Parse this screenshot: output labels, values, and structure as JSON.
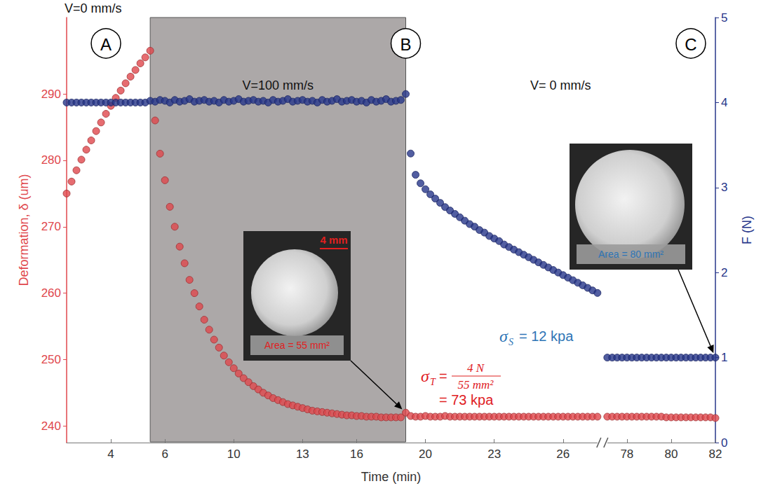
{
  "chart_data": {
    "type": "scatter",
    "x_label": "Time (min)",
    "categories": [
      null,
      null,
      null,
      null,
      null,
      null,
      null,
      null,
      null,
      "4",
      null,
      null,
      null,
      null,
      null,
      null,
      null,
      null,
      null,
      null,
      "6",
      null,
      null,
      null,
      null,
      null,
      null,
      null,
      null,
      null,
      null,
      null,
      null,
      null,
      "10",
      null,
      null,
      null,
      null,
      null,
      null,
      null,
      null,
      null,
      null,
      null,
      null,
      null,
      "13",
      null,
      null,
      null,
      null,
      null,
      null,
      null,
      null,
      null,
      null,
      "16",
      null,
      null,
      null,
      null,
      null,
      null,
      null,
      null,
      null,
      null,
      null,
      null,
      null,
      "20",
      null,
      null,
      null,
      null,
      null,
      null,
      null,
      null,
      null,
      null,
      null,
      null,
      null,
      "23",
      null,
      null,
      null,
      null,
      null,
      null,
      null,
      null,
      null,
      null,
      null,
      null,
      null,
      "26",
      null,
      null,
      null,
      null,
      null,
      null,
      null,
      null,
      null,
      null,
      null,
      null,
      "78",
      null,
      null,
      null,
      null,
      null,
      null,
      null,
      null,
      "80",
      null,
      null,
      null,
      null,
      null,
      null,
      null,
      null,
      "82"
    ],
    "series": [
      {
        "name": "Deformation, δ (um)",
        "color": "#e0474c",
        "axis": "y",
        "values": [
          275,
          276.8,
          278.5,
          280.1,
          281.6,
          283,
          284.4,
          285.7,
          287,
          288.2,
          289.4,
          290.5,
          291.6,
          292.6,
          293.6,
          294.6,
          295.5,
          296.5,
          286,
          281,
          277,
          273,
          270,
          267,
          264.5,
          262,
          260,
          258,
          256,
          254.5,
          253,
          251.8,
          250.6,
          249.6,
          248.7,
          247.9,
          247.2,
          246.6,
          246,
          245.5,
          245,
          244.6,
          244.2,
          243.9,
          243.6,
          243.3,
          243.1,
          242.9,
          242.7,
          242.5,
          242.3,
          242.2,
          242.1,
          242,
          241.9,
          241.8,
          241.7,
          241.6,
          241.6,
          241.5,
          241.5,
          241.4,
          241.4,
          241.4,
          241.3,
          241.3,
          241.3,
          241.3,
          241.3,
          242,
          241.5,
          241.4,
          241.4,
          241.5,
          241.4,
          241.4,
          241.4,
          241.5,
          241.4,
          241.4,
          241.4,
          241.4,
          241.4,
          241.4,
          241.4,
          241.4,
          241.4,
          241.4,
          241.4,
          241.4,
          241.4,
          241.4,
          241.4,
          241.4,
          241.4,
          241.4,
          241.4,
          241.4,
          241.4,
          241.4,
          241.4,
          241.4,
          241.4,
          241.4,
          241.4,
          241.4,
          241.4,
          241.4,
          241.4,
          null,
          241.4,
          241.4,
          241.4,
          241.4,
          241.4,
          241.4,
          241.4,
          241.4,
          241.4,
          241.4,
          241.4,
          241.4,
          241.3,
          241.3,
          241.3,
          241.3,
          241.3,
          241.3,
          241.3,
          241.3,
          241.3,
          241.3,
          241.2
        ]
      },
      {
        "name": "F (N)",
        "color": "#27368a",
        "axis": "y2",
        "values": [
          4,
          4,
          4,
          4,
          4,
          4,
          4,
          4,
          4,
          4,
          4,
          4,
          4,
          4,
          4,
          4,
          4,
          4.02,
          4.01,
          4.03,
          4.02,
          4,
          4.03,
          4.01,
          4.02,
          4.04,
          4.01,
          4.02,
          4.03,
          4.01,
          4.02,
          4,
          4.03,
          4.01,
          4.02,
          4.04,
          4.01,
          4.02,
          4.03,
          4.01,
          4.02,
          4,
          4.03,
          4.01,
          4.02,
          4.04,
          4.01,
          4.02,
          4.03,
          4.01,
          4.02,
          4,
          4.03,
          4.01,
          4.02,
          4.04,
          4.01,
          4.02,
          4.03,
          4.01,
          4.02,
          4,
          4.03,
          4.01,
          4.02,
          4.04,
          4.01,
          4.02,
          4.03,
          4.1,
          3.4,
          3.15,
          3.05,
          2.98,
          2.92,
          2.87,
          2.82,
          2.77,
          2.73,
          2.69,
          2.65,
          2.61,
          2.57,
          2.54,
          2.5,
          2.47,
          2.43,
          2.4,
          2.37,
          2.33,
          2.3,
          2.27,
          2.24,
          2.21,
          2.18,
          2.15,
          2.12,
          2.09,
          2.06,
          2.03,
          2,
          1.97,
          1.94,
          1.91,
          1.88,
          1.85,
          1.82,
          1.79,
          1.76,
          null,
          1,
          1,
          1,
          1,
          1,
          1,
          1,
          1,
          1,
          1,
          1,
          1,
          1,
          1,
          1,
          1,
          1,
          1,
          1,
          1,
          1,
          1,
          1
        ]
      }
    ],
    "ylim": [
      237.5,
      301.5
    ],
    "yticks": [
      240,
      250,
      260,
      270,
      280,
      290
    ],
    "y2lim": [
      0,
      5
    ],
    "y2ticks": [
      0,
      1,
      2,
      3,
      4,
      5
    ],
    "x_break": 109,
    "phases": [
      {
        "label": "V=0 mm/s",
        "span": [
          0,
          17
        ]
      },
      {
        "label": "V=100 mm/s",
        "span": [
          17,
          69
        ],
        "color": "#aca8a8"
      },
      {
        "label": "V= 0 mm/s",
        "span": [
          69,
          132
        ]
      }
    ],
    "markers": [
      {
        "label": "A",
        "x": 8
      },
      {
        "label": "B",
        "x": 69
      },
      {
        "label": "C",
        "x": 127
      }
    ],
    "insets": [
      {
        "area_label": "Area = 55 mm²",
        "scale_label": "4 mm",
        "color": "#e0201f"
      },
      {
        "area_label": "Area = 80 mm²",
        "color": "#2e75b6"
      }
    ],
    "annotations": [
      {
        "symbol": "σ",
        "subscript": "T",
        "numerator": "4 N",
        "denominator": "55 mm²",
        "result": "= 73 kpa",
        "color": "#e0201f"
      },
      {
        "symbol": "σ",
        "subscript": "S",
        "result": "= 12 kpa",
        "color": "#2e75b6"
      }
    ],
    "grid": false,
    "marker": "circle"
  }
}
